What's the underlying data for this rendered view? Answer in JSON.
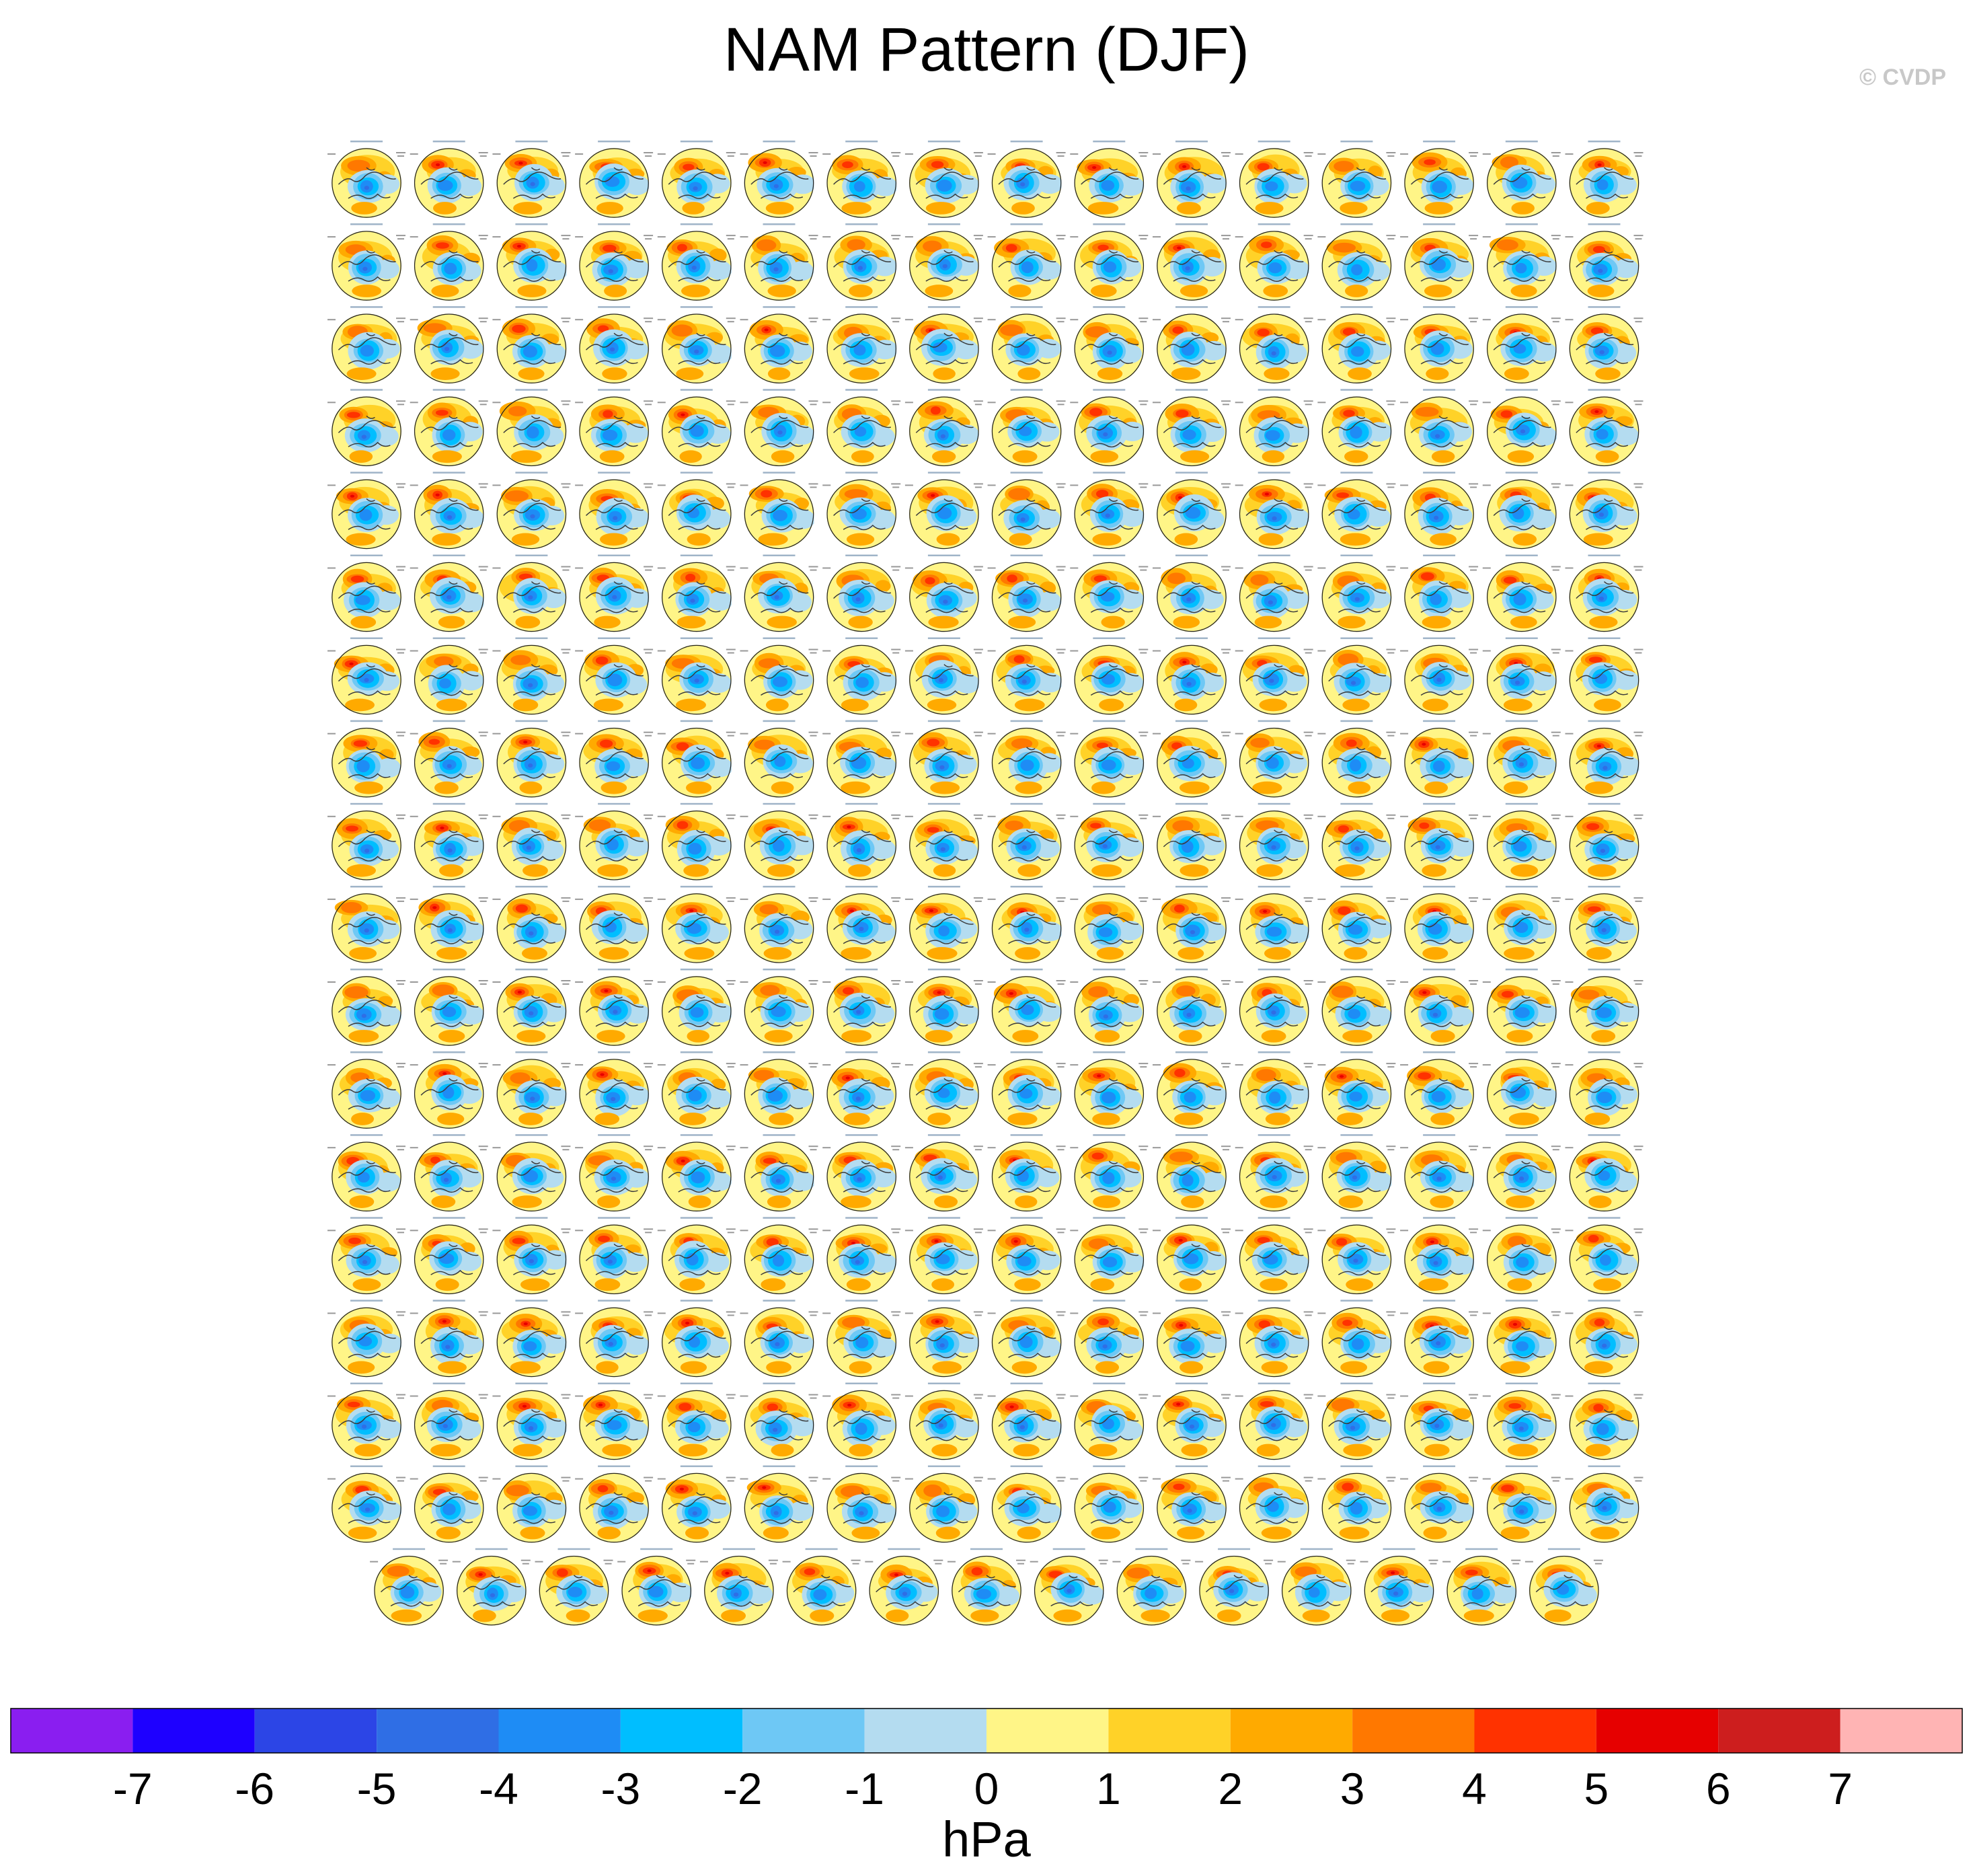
{
  "title": "NAM Pattern (DJF)",
  "copyright": "© CVDP",
  "chart_data": {
    "type": "heatmap",
    "description_kind": "panel-grid",
    "grid": {
      "rows_full": 17,
      "cols_full": 16,
      "last_row_panels": 15,
      "total_panels": 287
    },
    "colorbar": {
      "units": "hPa",
      "ticks": [
        "-7",
        "-6",
        "-5",
        "-4",
        "-3",
        "-2",
        "-1",
        "0",
        "1",
        "2",
        "3",
        "4",
        "5",
        "6",
        "7"
      ],
      "bins": [
        {
          "range": "< -7",
          "color": "#8a1ef0"
        },
        {
          "range": "-7 to -6",
          "color": "#1e00ff"
        },
        {
          "range": "-6 to -5",
          "color": "#2c45e6"
        },
        {
          "range": "-5 to -4",
          "color": "#2f6ee5"
        },
        {
          "range": "-4 to -3",
          "color": "#1e8cf5"
        },
        {
          "range": "-3 to -2",
          "color": "#00beff"
        },
        {
          "range": "-2 to -1",
          "color": "#6ec8f5"
        },
        {
          "range": "-1 to 0",
          "color": "#b4dcf0"
        },
        {
          "range": "0 to 1",
          "color": "#fff587"
        },
        {
          "range": "1 to 2",
          "color": "#ffd228"
        },
        {
          "range": "2 to 3",
          "color": "#ffaa00"
        },
        {
          "range": "3 to 4",
          "color": "#ff7800"
        },
        {
          "range": "4 to 5",
          "color": "#ff3200"
        },
        {
          "range": "5 to 6",
          "color": "#e60000"
        },
        {
          "range": "6 to 7",
          "color": "#cd1e1e"
        },
        {
          "range": "> 7",
          "color": "#ffb4b4"
        }
      ]
    }
  }
}
